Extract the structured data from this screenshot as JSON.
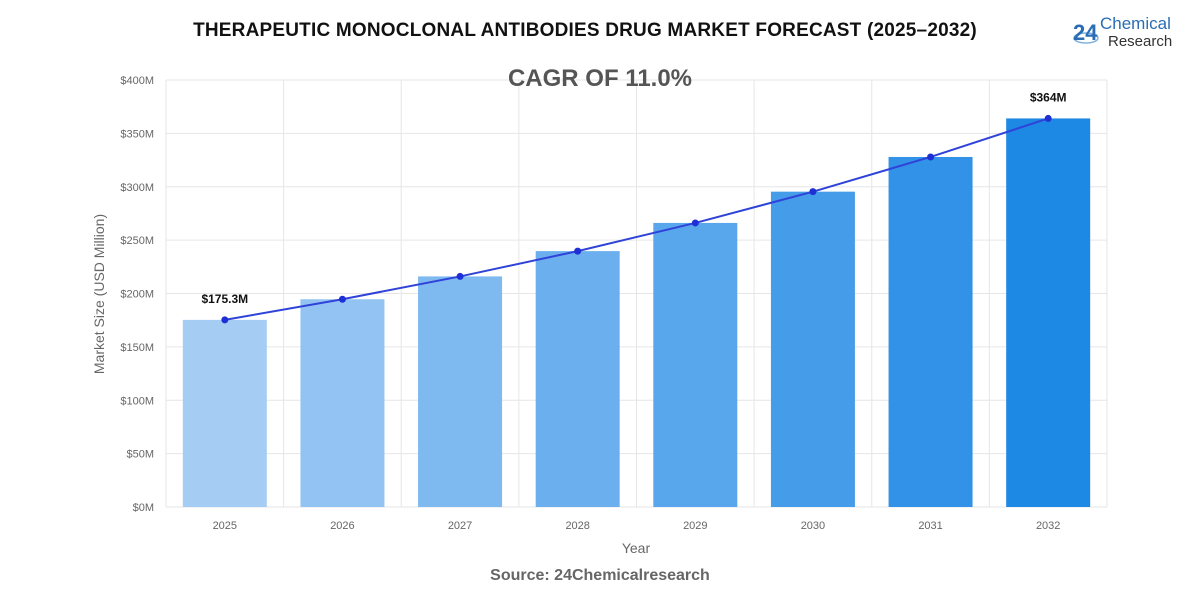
{
  "title": "THERAPEUTIC MONOCLONAL ANTIBODIES DRUG MARKET FORECAST (2025–2032)",
  "logo": {
    "text_number": "24",
    "text_line1": "Chemical",
    "text_line2": "Research"
  },
  "source": "Source: 24Chemicalresearch",
  "chart_data": {
    "type": "bar",
    "annotation": "CAGR OF 11.0%",
    "xlabel": "Year",
    "ylabel": "Market Size (USD Million)",
    "categories": [
      "2025",
      "2026",
      "2027",
      "2028",
      "2029",
      "2030",
      "2031",
      "2032"
    ],
    "values": [
      175.3,
      194.6,
      216.0,
      239.7,
      266.1,
      295.4,
      327.9,
      364.0
    ],
    "trend_line": true,
    "data_labels": [
      {
        "category": "2025",
        "text": "$175.3M"
      },
      {
        "category": "2032",
        "text": "$364M"
      }
    ],
    "ylim": [
      0,
      400
    ],
    "yticks": [
      0,
      50,
      100,
      150,
      200,
      250,
      300,
      350,
      400
    ],
    "ytick_labels": [
      "$0M",
      "$50M",
      "$100M",
      "$150M",
      "$200M",
      "$250M",
      "$300M",
      "$350M",
      "$400M"
    ],
    "grid": true,
    "colors": {
      "bar_start": "#a5cdf4",
      "bar_end": "#1e88e5",
      "line": "#2f43d8",
      "points": "#1f2fd6"
    }
  }
}
